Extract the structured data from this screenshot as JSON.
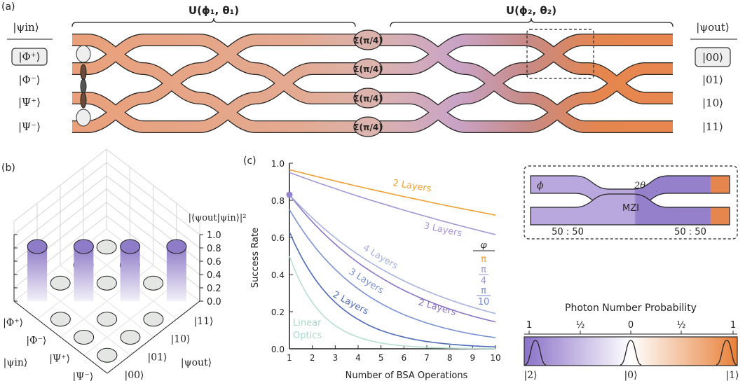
{
  "panel_labels": {
    "a": "(a)",
    "b": "(b)",
    "c": "(c)"
  },
  "panel_a": {
    "unitary_1": "U(ϕ₁, θ₁)",
    "unitary_2": "U(ϕ₂, θ₂)",
    "input_header": "|ψin⟩",
    "output_header": "|ψout⟩",
    "inputs": [
      "|Φ⁺⟩",
      "|Φ⁻⟩",
      "|Ψ⁺⟩",
      "|Ψ⁻⟩"
    ],
    "outputs": [
      "|00⟩",
      "|01⟩",
      "|10⟩",
      "|11⟩"
    ],
    "sigma_label": "Σ(π/4)",
    "colors": {
      "orange": "#e9a07a",
      "pink": "#dcb3ad",
      "purple": "#b4a2d8",
      "deep_orange": "#e6864f"
    }
  },
  "panel_b": {
    "zlabel": "|⟨ψout|ψin⟩|²",
    "ztick_labels": [
      "0.0",
      "0.2",
      "0.4",
      "0.6",
      "0.8",
      "1.0"
    ],
    "xlabel": "|ψin⟩",
    "ylabel": "|ψout⟩",
    "in_states": [
      "|Φ⁺⟩",
      "|Φ⁻⟩",
      "|Ψ⁺⟩",
      "|Ψ⁻⟩"
    ],
    "out_states": [
      "|00⟩",
      "|01⟩",
      "|10⟩",
      "|11⟩"
    ],
    "matrix": [
      [
        1,
        0,
        0,
        0
      ],
      [
        0,
        1,
        0,
        0
      ],
      [
        0,
        0,
        1,
        0
      ],
      [
        0,
        0,
        0,
        1
      ]
    ]
  },
  "chart_data": {
    "type": "line",
    "xlabel": "Number of BSA Operations",
    "ylabel": "Success Rate",
    "xlim": [
      1,
      10
    ],
    "ylim": [
      0,
      1
    ],
    "xticks": [
      "1",
      "2",
      "3",
      "4",
      "5",
      "6",
      "7",
      "8",
      "9",
      "10"
    ],
    "yticks": [
      "0.0",
      "0.2",
      "0.4",
      "0.6",
      "0.8",
      "1.0"
    ],
    "x": [
      1,
      2,
      3,
      4,
      5,
      6,
      7,
      8,
      9,
      10
    ],
    "legend_title": "φ",
    "legend": [
      {
        "label": "π",
        "color": "#f0a030"
      },
      {
        "label_num": "π",
        "label_den": "4",
        "color": "#9d8cd4"
      },
      {
        "label_num": "π",
        "label_den": "10",
        "color": "#6f86cc"
      }
    ],
    "marker": {
      "x": 1,
      "y": 0.83,
      "color": "#9585d0"
    },
    "series": [
      {
        "name": "2 Layers",
        "phi": "π",
        "color": "#f0a030",
        "values": [
          0.965,
          0.934,
          0.904,
          0.875,
          0.847,
          0.82,
          0.794,
          0.768,
          0.744,
          0.72
        ]
      },
      {
        "name": "3 Layers",
        "phi": "π/4",
        "color": "#a596d6",
        "values": [
          0.95,
          0.905,
          0.863,
          0.822,
          0.784,
          0.747,
          0.712,
          0.678,
          0.646,
          0.615
        ]
      },
      {
        "name": "4 Layers",
        "phi": "π/4",
        "color": "#a7b2df",
        "values": [
          0.83,
          0.705,
          0.598,
          0.508,
          0.431,
          0.366,
          0.311,
          0.264,
          0.224,
          0.19
        ]
      },
      {
        "name": "2 Layers",
        "phi": "π/4",
        "color": "#8a74c6",
        "values": [
          0.83,
          0.684,
          0.564,
          0.464,
          0.383,
          0.315,
          0.26,
          0.214,
          0.176,
          0.145
        ]
      },
      {
        "name": "3 Layers",
        "phi": "π/10",
        "color": "#7a92d2",
        "values": [
          0.75,
          0.566,
          0.428,
          0.323,
          0.244,
          0.184,
          0.139,
          0.105,
          0.079,
          0.06
        ]
      },
      {
        "name": "2 Layers",
        "phi": "π/10",
        "color": "#4d6ab8",
        "values": [
          0.63,
          0.397,
          0.25,
          0.158,
          0.099,
          0.063,
          0.039,
          0.025,
          0.016,
          0.01
        ]
      },
      {
        "name": "Linear Optics",
        "color": "#b6dfcf",
        "values": [
          0.5,
          0.25,
          0.125,
          0.063,
          0.031,
          0.016,
          0.008,
          0.004,
          0.002,
          0.001
        ]
      }
    ],
    "curve_labels": [
      "2 Layers",
      "3 Layers",
      "4 Layers",
      "2 Layers",
      "3 Layers",
      "2 Layers",
      "Linear",
      "Optics"
    ]
  },
  "mzi": {
    "phi": "ϕ",
    "two_theta": "2θ",
    "label": "MZI",
    "splitter_1": "50 : 50",
    "splitter_2": "50 : 50"
  },
  "colorbar": {
    "title": "Photon Number Probability",
    "ticks": [
      "1",
      "½",
      "0",
      "½",
      "1"
    ],
    "states": [
      "|2⟩",
      "|0⟩",
      "|1⟩"
    ],
    "colors": {
      "two": "#8a72c8",
      "zero": "#ffffff",
      "one": "#e8803a"
    }
  }
}
